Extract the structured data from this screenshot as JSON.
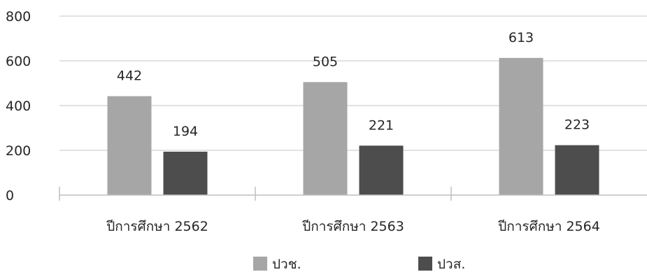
{
  "chart_data": {
    "type": "bar",
    "categories": [
      "ปีการศึกษา 2562",
      "ปีการศึกษา 2563",
      "ปีการศึกษา 2564"
    ],
    "series": [
      {
        "name": "ปวช.",
        "values": [
          442,
          505,
          613
        ],
        "color": "#a6a6a6"
      },
      {
        "name": "ปวส.",
        "values": [
          194,
          221,
          223
        ],
        "color": "#4d4d4d"
      }
    ],
    "ylim": [
      0,
      800
    ],
    "yticks": [
      0,
      200,
      400,
      600,
      800
    ],
    "grid": true,
    "legend_position": "bottom",
    "data_labels": true,
    "gridline_color": "#d9d9d9",
    "axis_color": "#bfbfbf",
    "text_color": "#262626"
  }
}
